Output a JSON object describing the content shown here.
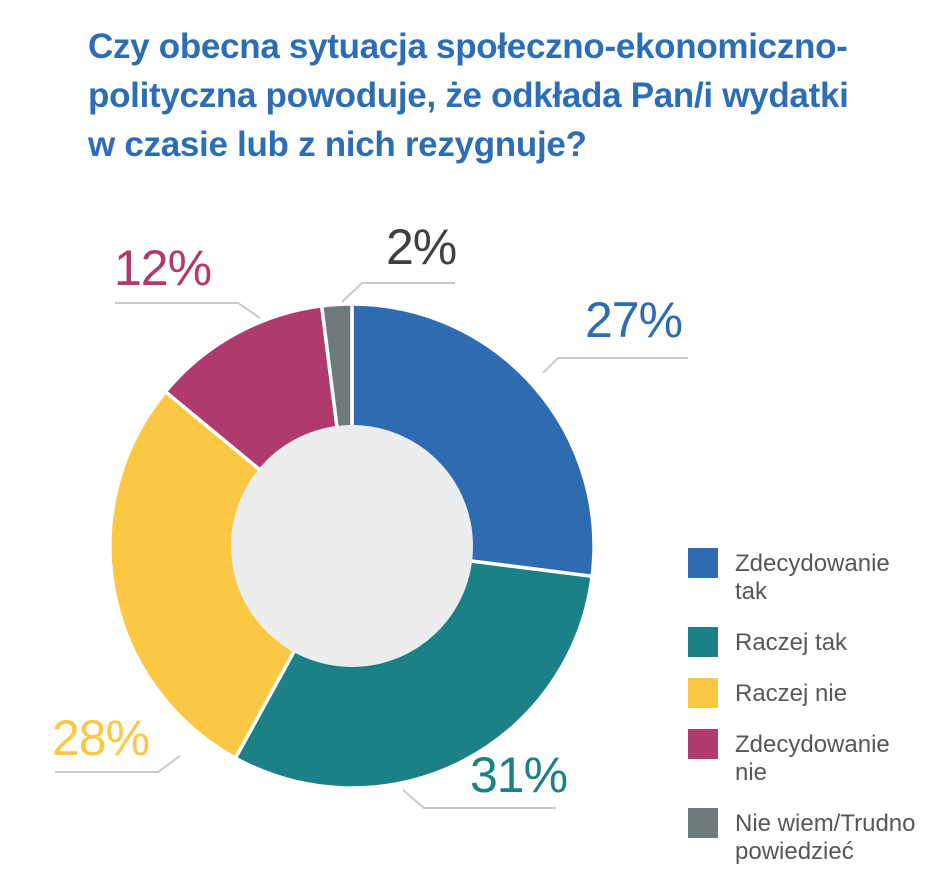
{
  "title": {
    "lines": [
      "Czy obecna sytuacja społeczno-ekonomiczno-",
      "polityczna powoduje, że odkłada Pan/i wydatki",
      "w czasie lub z nich rezygnuje?"
    ],
    "color": "#2d6db4"
  },
  "chart_data": {
    "type": "pie",
    "subtype": "donut",
    "title": "Czy obecna sytuacja społeczno-ekonomiczno-polityczna powoduje, że odkłada Pan/i wydatki w czasie lub z nich rezygnuje?",
    "categories": [
      "Zdecydowanie tak",
      "Raczej tak",
      "Raczej nie",
      "Zdecydowanie nie",
      "Nie wiem/Trudno powiedzieć"
    ],
    "values": [
      27,
      31,
      28,
      12,
      2
    ],
    "unit": "%",
    "slice_labels": [
      "27%",
      "31%",
      "28%",
      "12%",
      "2%"
    ],
    "colors": [
      "#2e6cb1",
      "#1b8186",
      "#fcc844",
      "#b13a6c",
      "#6f7a7d"
    ],
    "label_colors": [
      "#2e6cb1",
      "#1b8186",
      "#fcc844",
      "#b13a6c",
      "#3e4043"
    ],
    "start_angle_deg": 0,
    "direction": "clockwise",
    "hole_ratio": 0.5,
    "hole_color": "#ecedee",
    "legend_position": "right"
  },
  "styles": {
    "leader_line_color": "#c9cacb",
    "legend_text_color": "#56575b",
    "slice_stroke_color": "#ffffff"
  }
}
